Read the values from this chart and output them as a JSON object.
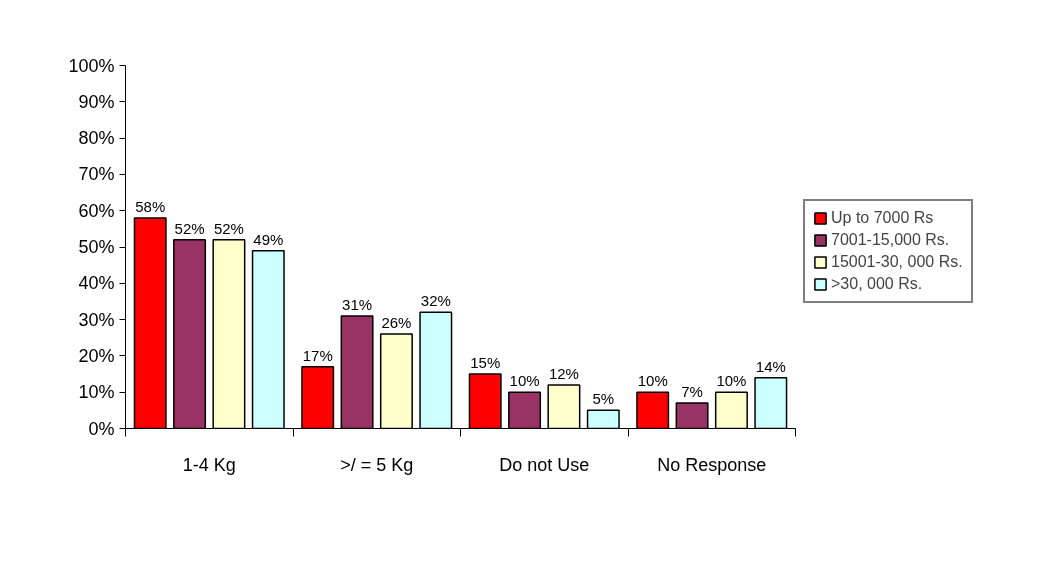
{
  "chart_data": {
    "type": "bar",
    "categories": [
      "1-4 Kg",
      ">/ = 5 Kg",
      "Do not Use",
      "No Response"
    ],
    "series": [
      {
        "name": "Up to 7000 Rs",
        "color": "#ff0000",
        "values": [
          58,
          17,
          15,
          10
        ],
        "value_labels": [
          "58%",
          "17%",
          "15%",
          "10%"
        ]
      },
      {
        "name": "7001-15,000 Rs.",
        "color": "#993366",
        "values": [
          52,
          31,
          10,
          7
        ],
        "value_labels": [
          "52%",
          "31%",
          "10%",
          "7%"
        ]
      },
      {
        "name": "15001-30, 000 Rs.",
        "color": "#ffffcc",
        "values": [
          52,
          26,
          12,
          10
        ],
        "value_labels": [
          "52%",
          "26%",
          "12%",
          "10%"
        ]
      },
      {
        "name": ">30, 000 Rs.",
        "color": "#ccffff",
        "values": [
          49,
          32,
          5,
          14
        ],
        "value_labels": [
          "49%",
          "32%",
          "5%",
          "14%"
        ]
      }
    ],
    "ylim": [
      0,
      100
    ],
    "yticks": [
      {
        "value": 0,
        "label": "0%"
      },
      {
        "value": 10,
        "label": "10%"
      },
      {
        "value": 20,
        "label": "20%"
      },
      {
        "value": 30,
        "label": "30%"
      },
      {
        "value": 40,
        "label": "40%"
      },
      {
        "value": 50,
        "label": "50%"
      },
      {
        "value": 60,
        "label": "60%"
      },
      {
        "value": 70,
        "label": "70%"
      },
      {
        "value": 80,
        "label": "80%"
      },
      {
        "value": 90,
        "label": "90%"
      },
      {
        "value": 100,
        "label": "100%"
      }
    ],
    "grid": false,
    "legend": "right"
  }
}
